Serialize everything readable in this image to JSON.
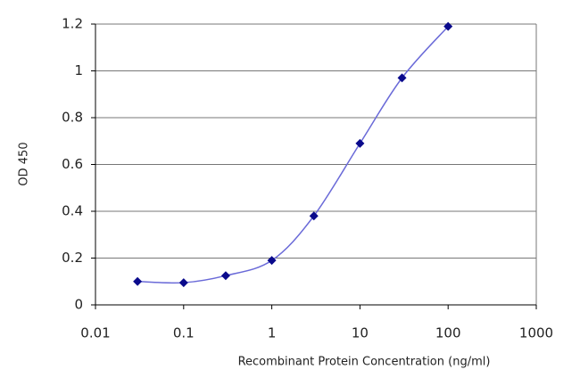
{
  "chart_data": {
    "type": "line",
    "x_label": "Recombinant Protein Concentration (ng/ml)",
    "y_label": "OD 450",
    "x": [
      0.03,
      0.1,
      0.3,
      1,
      3,
      10,
      30,
      100
    ],
    "values": [
      0.1,
      0.095,
      0.125,
      0.19,
      0.38,
      0.69,
      0.97,
      1.19
    ],
    "color": "#6a6ad8",
    "marker_color": "#0a0a8c",
    "xscale": "log",
    "xlim": [
      0.01,
      1000
    ],
    "xticks": [
      0.01,
      0.1,
      1,
      10,
      100,
      1000
    ],
    "ylim": [
      0,
      1.2
    ],
    "yticks": [
      0,
      0.2,
      0.4,
      0.6,
      0.8,
      1,
      1.2
    ],
    "grid": true
  }
}
